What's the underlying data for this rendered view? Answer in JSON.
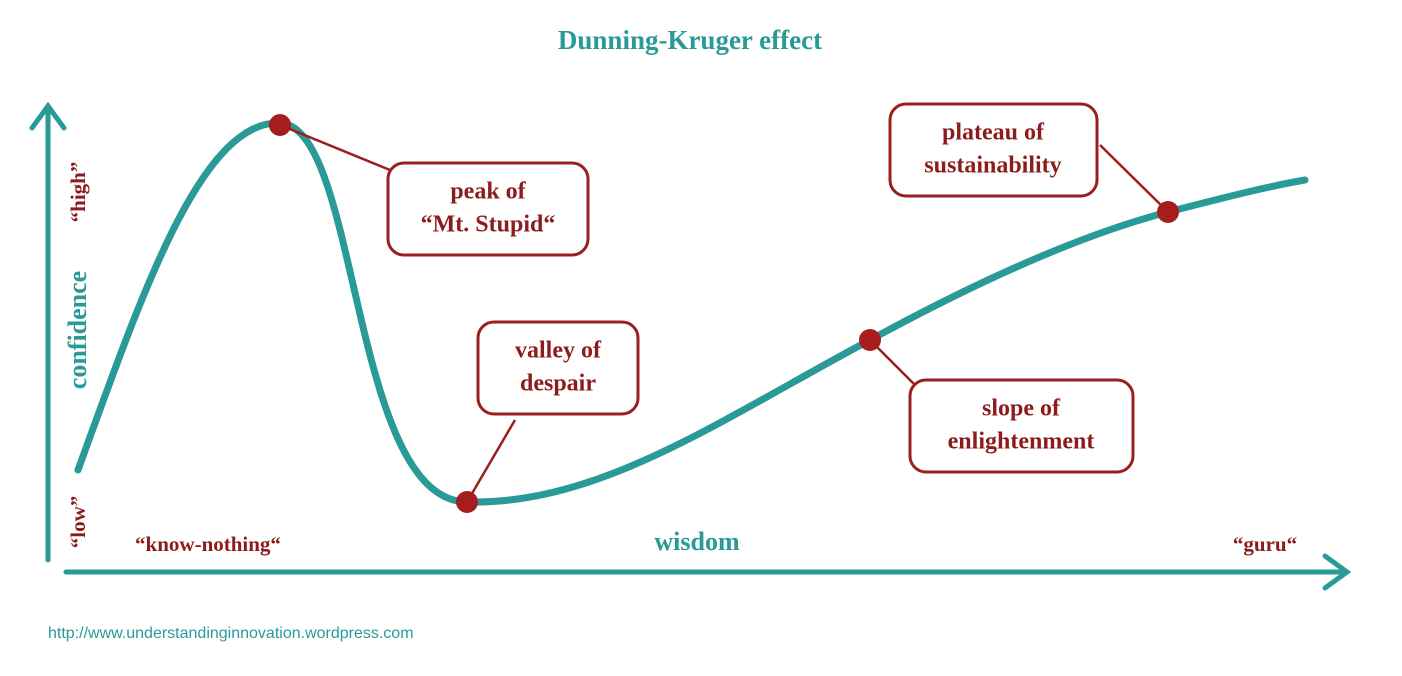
{
  "title": "Dunning-Kruger effect",
  "axes": {
    "y": {
      "label": "confidence",
      "high": "“high”",
      "low": "“low”"
    },
    "x": {
      "label": "wisdom",
      "start": "“know-nothing“",
      "end": "“guru“"
    }
  },
  "annotations": [
    {
      "lines": [
        "peak of",
        "“Mt. Stupid“"
      ]
    },
    {
      "lines": [
        "valley of",
        "despair"
      ]
    },
    {
      "lines": [
        "slope of",
        "enlightenment"
      ]
    },
    {
      "lines": [
        "plateau of",
        "sustainability"
      ]
    }
  ],
  "footer": "http://www.understandinginnovation.wordpress.com"
}
